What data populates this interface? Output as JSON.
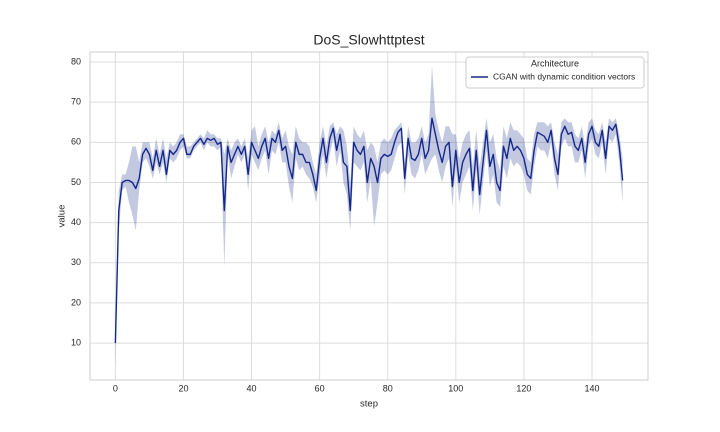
{
  "chart_data": {
    "type": "line",
    "title": "DoS_Slowhttptest",
    "xlabel": "step",
    "ylabel": "value",
    "x": [
      0,
      1,
      2,
      3,
      4,
      5,
      6,
      7,
      8,
      9,
      10,
      11,
      12,
      13,
      14,
      15,
      16,
      17,
      18,
      19,
      20,
      21,
      22,
      23,
      24,
      25,
      26,
      27,
      28,
      29,
      30,
      31,
      32,
      33,
      34,
      35,
      36,
      37,
      38,
      39,
      40,
      41,
      42,
      43,
      44,
      45,
      46,
      47,
      48,
      49,
      50,
      51,
      52,
      53,
      54,
      55,
      56,
      57,
      58,
      59,
      60,
      61,
      62,
      63,
      64,
      65,
      66,
      67,
      68,
      69,
      70,
      71,
      72,
      73,
      74,
      75,
      76,
      77,
      78,
      79,
      80,
      81,
      82,
      83,
      84,
      85,
      86,
      87,
      88,
      89,
      90,
      91,
      92,
      93,
      94,
      95,
      96,
      97,
      98,
      99,
      100,
      101,
      102,
      103,
      104,
      105,
      106,
      107,
      108,
      109,
      110,
      111,
      112,
      113,
      114,
      115,
      116,
      117,
      118,
      119,
      120,
      121,
      122,
      123,
      124,
      125,
      126,
      127,
      128,
      129,
      130,
      131,
      132,
      133,
      134,
      135,
      136,
      137,
      138,
      139,
      140,
      141,
      142,
      143,
      144,
      145,
      146,
      147,
      148,
      149
    ],
    "series": [
      {
        "name": "CGAN with dynamic condition vectors",
        "color": "#14288a",
        "values": [
          10,
          43,
          50,
          50.5,
          50.5,
          50,
          48.5,
          51,
          57,
          58.5,
          57,
          53,
          58,
          54,
          58,
          52,
          58,
          57,
          58,
          60,
          61,
          57,
          57,
          59,
          60,
          61,
          59.5,
          61,
          60.5,
          61,
          59.5,
          60,
          43,
          59,
          55,
          57,
          59,
          57,
          59,
          52,
          60,
          58,
          56,
          59,
          61,
          56,
          61,
          60,
          63,
          58,
          59,
          54,
          51,
          60,
          57,
          57,
          55,
          55,
          52,
          48,
          56,
          61,
          55,
          61,
          63.5,
          58,
          62,
          55,
          54,
          43,
          60,
          58,
          57,
          59,
          50,
          56,
          54,
          50,
          56,
          57,
          56.5,
          57,
          60,
          62.5,
          63.5,
          51,
          61,
          56,
          55.5,
          57,
          61,
          56,
          58,
          66,
          62,
          58,
          55,
          59,
          60,
          49,
          58,
          50,
          55,
          57,
          58.5,
          48,
          58,
          47,
          55,
          63,
          54,
          57,
          50,
          48,
          59,
          56,
          61,
          58,
          59,
          58,
          56,
          52,
          51,
          58,
          62.5,
          62,
          61.5,
          60,
          63,
          56,
          52,
          62,
          64,
          62,
          62.5,
          59,
          58,
          61,
          55,
          62,
          64,
          60,
          59,
          63,
          56,
          64,
          63,
          64.5,
          59,
          50.5
        ],
        "ci_lower": [
          4,
          38,
          48,
          49,
          45,
          42,
          38,
          48,
          55,
          56,
          54,
          51,
          55,
          52,
          55,
          50,
          56,
          55,
          56,
          58,
          59,
          56,
          56,
          58,
          59,
          60,
          58,
          60,
          59,
          59,
          58,
          59,
          29,
          57,
          51,
          54,
          57,
          55,
          57,
          48,
          57,
          55,
          53,
          56,
          58,
          52,
          58,
          57,
          60,
          55,
          55,
          49,
          45,
          56,
          53,
          54,
          52,
          51,
          49,
          45,
          52,
          57,
          51,
          57,
          61,
          54,
          58,
          50,
          47,
          38,
          55,
          54,
          53,
          55,
          45,
          51,
          39,
          45,
          52,
          53,
          52,
          53,
          56,
          59,
          60,
          47,
          57,
          52,
          51,
          53,
          57,
          52,
          54,
          56,
          57,
          53,
          50,
          54,
          56,
          44,
          54,
          45,
          50,
          52,
          54,
          43,
          53,
          42,
          50,
          58,
          49,
          52,
          45,
          44,
          54,
          51,
          56,
          54,
          55,
          54,
          52,
          48,
          47,
          54,
          59,
          58,
          58,
          56,
          60,
          52,
          48,
          59,
          61,
          59,
          59,
          55,
          55,
          58,
          51,
          59,
          61,
          57,
          56,
          60,
          52,
          61,
          60,
          62,
          55,
          45
        ],
        "ci_upper": [
          15,
          48,
          52,
          52,
          55,
          59,
          59,
          55,
          60,
          60,
          60,
          56,
          61,
          57,
          61,
          56,
          60,
          59,
          60,
          62,
          62,
          59,
          59,
          60,
          61,
          62,
          61,
          63,
          62,
          62,
          61,
          61,
          57,
          61,
          58,
          60,
          61,
          59,
          61,
          56,
          63,
          64,
          59,
          62,
          64,
          60,
          63,
          62,
          65,
          61,
          63,
          59,
          57,
          64,
          61,
          60,
          60,
          59,
          55,
          52,
          60,
          64,
          59,
          64,
          65,
          62,
          64,
          63,
          59,
          50,
          64,
          62,
          61,
          63,
          58,
          60,
          59,
          55,
          60,
          61,
          60,
          61,
          63,
          64,
          65,
          55,
          64,
          60,
          60,
          61,
          64,
          60,
          62,
          79,
          67,
          63,
          60,
          64,
          64,
          62,
          62,
          56,
          60,
          62,
          63,
          54,
          63,
          54,
          60,
          66,
          60,
          62,
          56,
          53,
          64,
          61,
          65,
          63,
          63,
          62,
          61,
          56,
          55,
          62,
          65,
          65,
          65,
          64,
          65,
          60,
          57,
          65,
          66,
          65,
          65,
          62,
          61,
          64,
          59,
          65,
          66,
          63,
          62,
          65,
          60,
          66,
          65,
          66,
          62,
          56
        ]
      }
    ],
    "xlim": [
      -7.45,
      156.45
    ],
    "ylim": [
      0.8,
      82.5
    ],
    "xticks": [
      0,
      20,
      40,
      60,
      80,
      100,
      120,
      140
    ],
    "yticks": [
      10,
      20,
      30,
      40,
      50,
      60,
      70,
      80
    ],
    "grid": true,
    "legend_title": "Architecture",
    "legend_loc": "upper right"
  }
}
